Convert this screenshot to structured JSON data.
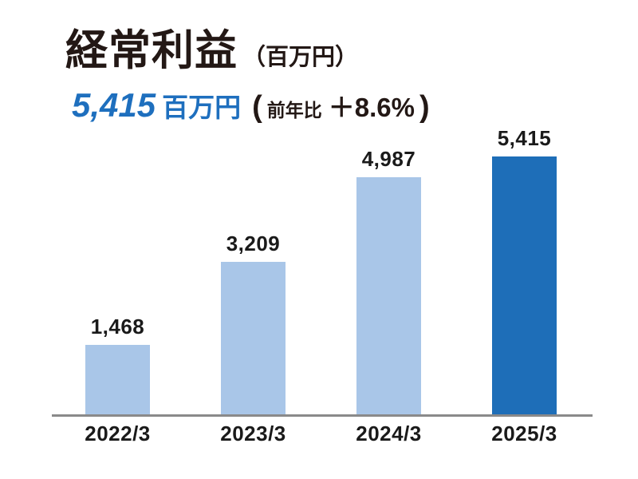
{
  "header": {
    "title": "経常利益",
    "title_unit": "（百万円）",
    "highlight_value": "5,415",
    "highlight_unit": "百万円",
    "paren_open": "(",
    "yoy_label": "前年比",
    "yoy_value": "＋8.6%",
    "paren_close": ")"
  },
  "colors": {
    "accent_blue_text": "#1e6fbe",
    "bar_light": "#a9c6e8",
    "bar_dark": "#1e6eb8",
    "text_dark": "#231815",
    "axis_gray": "#8a8a8a"
  },
  "chart_data": {
    "type": "bar",
    "title": "経常利益（百万円）",
    "categories": [
      "2022/3",
      "2023/3",
      "2024/3",
      "2025/3"
    ],
    "values": [
      1468,
      3209,
      4987,
      5415
    ],
    "value_labels": [
      "1,468",
      "3,209",
      "4,987",
      "5,415"
    ],
    "bar_colors": [
      "#a9c6e8",
      "#a9c6e8",
      "#a9c6e8",
      "#1e6eb8"
    ],
    "xlabel": "",
    "ylabel": "百万円",
    "ylim": [
      0,
      5415
    ],
    "grid": false,
    "legend": false,
    "highlight_category": "2025/3",
    "yoy_change_pct": 8.6
  }
}
